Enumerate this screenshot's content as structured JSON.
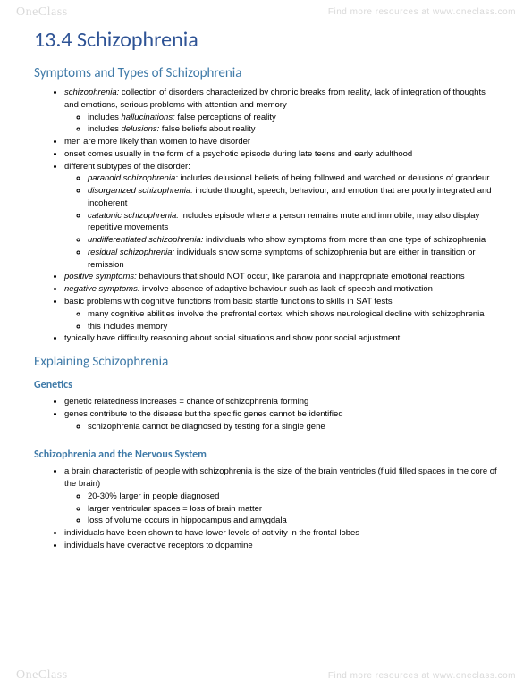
{
  "watermark": {
    "brand": "OneClass",
    "tagline": "Find more resources at www.oneclass.com"
  },
  "colors": {
    "h1": "#2e5395",
    "h2": "#3f7aa8",
    "h3": "#3f7aa8",
    "text": "#000000",
    "watermark": "#d9d9d9"
  },
  "title": "13.4 Schizophrenia",
  "sections": [
    {
      "heading": "Symptoms and Types of Schizophrenia",
      "level": 2,
      "bullets": [
        {
          "html": "<span class='it'>schizophrenia:</span> collection of disorders characterized by chronic breaks from reality, lack of integration of thoughts and emotions, serious problems with attention and memory",
          "sub": [
            {
              "html": "includes <span class='it'>hallucinations:</span> false perceptions of reality"
            },
            {
              "html": "includes <span class='it'>delusions:</span> false beliefs about reality"
            }
          ]
        },
        {
          "html": "men are more likely than women to have disorder"
        },
        {
          "html": "onset comes usually in the form of a psychotic episode during late teens and early adulthood"
        },
        {
          "html": "different subtypes of the disorder:",
          "sub": [
            {
              "html": "<span class='it'>paranoid schizophrenia:</span> includes delusional beliefs of being followed and watched or delusions of grandeur"
            },
            {
              "html": "<span class='it'>disorganized schizophrenia:</span> include thought, speech, behaviour, and emotion that are poorly integrated and incoherent"
            },
            {
              "html": "<span class='it'>catatonic schizophrenia:</span> includes episode where a person remains mute and immobile; may also display repetitive movements"
            },
            {
              "html": "<span class='it'>undifferentiated schizophrenia:</span> individuals who show symptoms from more than one type of schizophrenia"
            },
            {
              "html": "<span class='it'>residual schizophrenia:</span> individuals show some symptoms of schizophrenia but are either in transition or remission"
            }
          ]
        },
        {
          "html": "<span class='it'>positive symptoms:</span> behaviours that should NOT occur, like paranoia and inappropriate emotional reactions"
        },
        {
          "html": "<span class='it'>negative symptoms:</span> involve absence of adaptive behaviour such as lack of speech and motivation"
        },
        {
          "html": "basic problems with cognitive functions from basic startle functions to skills in SAT tests",
          "sub": [
            {
              "html": "many cognitive abilities involve the prefrontal cortex, which shows neurological decline with schizophrenia"
            },
            {
              "html": "this includes memory"
            }
          ]
        },
        {
          "html": "typically have difficulty reasoning about social situations and show poor social adjustment"
        }
      ]
    },
    {
      "heading": "Explaining Schizophrenia",
      "level": 2,
      "bullets": []
    },
    {
      "heading": "Genetics",
      "level": 3,
      "bullets": [
        {
          "html": "genetic relatedness increases = chance of schizophrenia forming"
        },
        {
          "html": "genes contribute to the disease but the specific genes cannot be identified",
          "sub": [
            {
              "html": "schizophrenia cannot be diagnosed by testing for a single gene"
            }
          ]
        }
      ]
    },
    {
      "heading": "Schizophrenia and the Nervous System",
      "level": 3,
      "bullets": [
        {
          "html": "a brain characteristic of people with schizophrenia is the size of the brain ventricles (fluid filled spaces in the core of the brain)",
          "sub": [
            {
              "html": "20-30% larger in people diagnosed"
            },
            {
              "html": "larger ventricular spaces = loss of brain matter"
            },
            {
              "html": "loss of volume occurs in hippocampus and amygdala"
            }
          ]
        },
        {
          "html": "individuals have been shown to have lower levels of activity in the frontal lobes"
        },
        {
          "html": "individuals have overactive receptors to dopamine"
        }
      ]
    }
  ]
}
